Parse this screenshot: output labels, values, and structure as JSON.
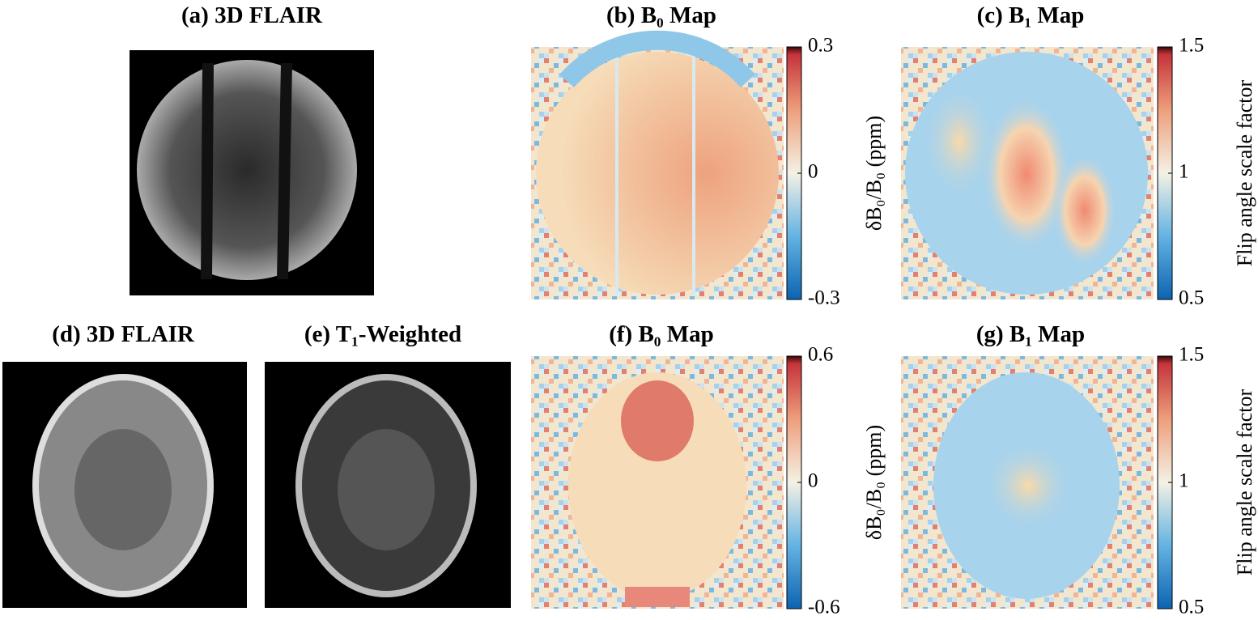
{
  "panels": [
    {
      "title": "(a) 3D FLAIR"
    },
    {
      "title": "(b) B₀ Map",
      "colorbar": {
        "lim": [
          -0.3,
          0.3
        ],
        "ticks": [
          0.3,
          0,
          -0.3
        ]
      }
    },
    {
      "title": "(c) B₁ Map",
      "side_label": "δB₀/B₀ (ppm)",
      "colorbar": {
        "lim": [
          0.5,
          1.5
        ],
        "ticks": [
          1.5,
          1,
          0.5
        ],
        "label": "Flip angle scale factor"
      }
    },
    {
      "title": "(d) 3D FLAIR"
    },
    {
      "title": "(e) T₁-Weighted"
    },
    {
      "title": "(f) B₀ Map",
      "colorbar": {
        "lim": [
          -0.6,
          0.6
        ],
        "ticks": [
          0.6,
          0,
          -0.6
        ]
      }
    },
    {
      "title": "(g) B₁ Map",
      "side_label": "δB₀/B₀ (ppm)",
      "colorbar": {
        "lim": [
          0.5,
          1.5
        ],
        "ticks": [
          1.5,
          1,
          0.5
        ],
        "label": "Flip angle scale factor"
      }
    }
  ]
}
